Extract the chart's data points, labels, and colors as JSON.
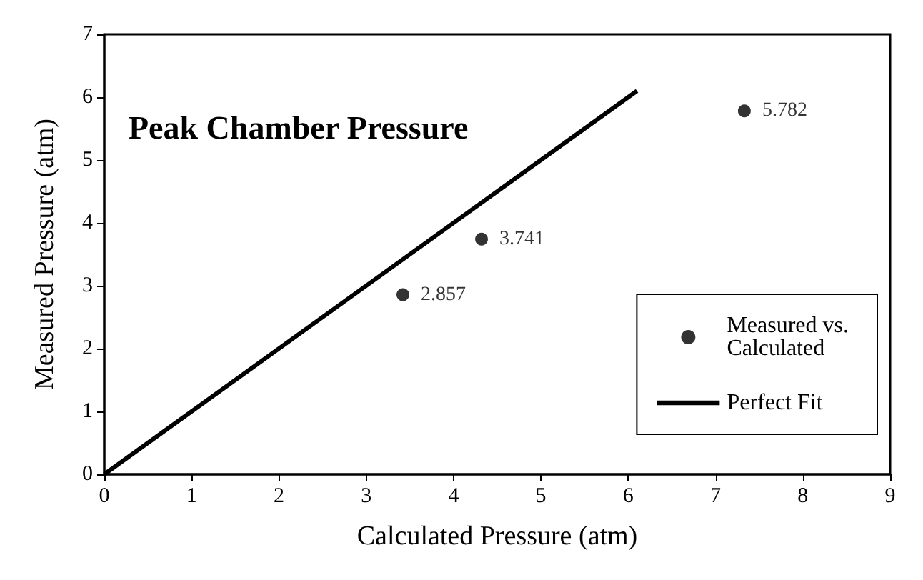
{
  "chart_data": {
    "type": "scatter",
    "title": "Peak Chamber Pressure",
    "xlabel": "Calculated Pressure (atm)",
    "ylabel": "Measured Pressure (atm)",
    "xlim": [
      0,
      9
    ],
    "xticks": [
      0,
      1,
      2,
      3,
      4,
      5,
      6,
      7,
      8,
      9
    ],
    "ylim": [
      0,
      7
    ],
    "yticks": [
      0,
      1,
      2,
      3,
      4,
      5,
      6,
      7
    ],
    "grid": false,
    "legend": "bottom right",
    "marker": "circle",
    "series": [
      {
        "name": "Measured vs. Calculated",
        "color": "#000000",
        "x": [
          3.42,
          4.32,
          7.33
        ],
        "values": [
          2.857,
          3.741,
          5.782
        ],
        "value_labels": [
          "2.857",
          "3.741",
          "5.782"
        ]
      },
      {
        "name": "Perfect Fit",
        "type": "line",
        "color": "#000000",
        "x": [
          0,
          6.1
        ],
        "values": [
          0,
          6.1
        ],
        "marker": "none",
        "line_style": "solid"
      }
    ]
  }
}
